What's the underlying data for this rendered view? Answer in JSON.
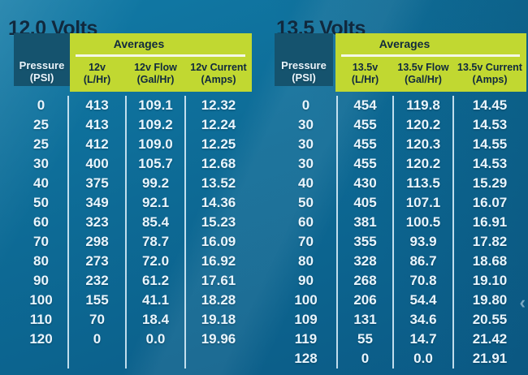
{
  "colors": {
    "background_top": "#117aa6",
    "background_mid": "#0d6a95",
    "background_bottom": "#0b5a85",
    "header_teal": "#15536e",
    "header_green": "#c1d831",
    "navy_text": "#10293e",
    "data_text": "#e9f5fd",
    "separator": "#daeef9",
    "averages_underline": "#f4f8e6"
  },
  "icons": {
    "chevron_left": "‹"
  },
  "tables": [
    {
      "title": "12.0 Volts",
      "pressure_header": {
        "line1": "Pressure",
        "line2": "(PSI)"
      },
      "averages_label": "Averages",
      "columns": [
        {
          "line1": "12v",
          "line2": "(L/Hr)"
        },
        {
          "line1": "12v Flow",
          "line2": "(Gal/Hr)"
        },
        {
          "line1": "12v Current",
          "line2": "(Amps)"
        }
      ],
      "rows": [
        [
          "0",
          "413",
          "109.1",
          "12.32"
        ],
        [
          "25",
          "413",
          "109.2",
          "12.24"
        ],
        [
          "25",
          "412",
          "109.0",
          "12.25"
        ],
        [
          "30",
          "400",
          "105.7",
          "12.68"
        ],
        [
          "40",
          "375",
          "99.2",
          "13.52"
        ],
        [
          "50",
          "349",
          "92.1",
          "14.36"
        ],
        [
          "60",
          "323",
          "85.4",
          "15.23"
        ],
        [
          "70",
          "298",
          "78.7",
          "16.09"
        ],
        [
          "80",
          "273",
          "72.0",
          "16.92"
        ],
        [
          "90",
          "232",
          "61.2",
          "17.61"
        ],
        [
          "100",
          "155",
          "41.1",
          "18.28"
        ],
        [
          "110",
          "70",
          "18.4",
          "19.18"
        ],
        [
          "120",
          "0",
          "0.0",
          "19.96"
        ]
      ]
    },
    {
      "title": "13.5 Volts",
      "pressure_header": {
        "line1": "Pressure",
        "line2": "(PSI)"
      },
      "averages_label": "Averages",
      "columns": [
        {
          "line1": "13.5v",
          "line2": "(L/Hr)"
        },
        {
          "line1": "13.5v Flow",
          "line2": "(Gal/Hr)"
        },
        {
          "line1": "13.5v Current",
          "line2": "(Amps)"
        }
      ],
      "rows": [
        [
          "0",
          "454",
          "119.8",
          "14.45"
        ],
        [
          "30",
          "455",
          "120.2",
          "14.53"
        ],
        [
          "30",
          "455",
          "120.3",
          "14.55"
        ],
        [
          "30",
          "455",
          "120.2",
          "14.53"
        ],
        [
          "40",
          "430",
          "113.5",
          "15.29"
        ],
        [
          "50",
          "405",
          "107.1",
          "16.07"
        ],
        [
          "60",
          "381",
          "100.5",
          "16.91"
        ],
        [
          "70",
          "355",
          "93.9",
          "17.82"
        ],
        [
          "80",
          "328",
          "86.7",
          "18.68"
        ],
        [
          "90",
          "268",
          "70.8",
          "19.10"
        ],
        [
          "100",
          "206",
          "54.4",
          "19.80"
        ],
        [
          "109",
          "131",
          "34.6",
          "20.55"
        ],
        [
          "119",
          "55",
          "14.7",
          "21.42"
        ],
        [
          "128",
          "0",
          "0.0",
          "21.91"
        ]
      ]
    }
  ],
  "chart_data": [
    {
      "type": "table",
      "title": "12.0 Volts",
      "columns": [
        "Pressure (PSI)",
        "12v (L/Hr)",
        "12v Flow (Gal/Hr)",
        "12v Current (Amps)"
      ],
      "header_group": "Averages",
      "rows": [
        [
          0,
          413,
          109.1,
          12.32
        ],
        [
          25,
          413,
          109.2,
          12.24
        ],
        [
          25,
          412,
          109.0,
          12.25
        ],
        [
          30,
          400,
          105.7,
          12.68
        ],
        [
          40,
          375,
          99.2,
          13.52
        ],
        [
          50,
          349,
          92.1,
          14.36
        ],
        [
          60,
          323,
          85.4,
          15.23
        ],
        [
          70,
          298,
          78.7,
          16.09
        ],
        [
          80,
          273,
          72.0,
          16.92
        ],
        [
          90,
          232,
          61.2,
          17.61
        ],
        [
          100,
          155,
          41.1,
          18.28
        ],
        [
          110,
          70,
          18.4,
          19.18
        ],
        [
          120,
          0,
          0.0,
          19.96
        ]
      ]
    },
    {
      "type": "table",
      "title": "13.5 Volts",
      "columns": [
        "Pressure (PSI)",
        "13.5v (L/Hr)",
        "13.5v Flow (Gal/Hr)",
        "13.5v Current (Amps)"
      ],
      "header_group": "Averages",
      "rows": [
        [
          0,
          454,
          119.8,
          14.45
        ],
        [
          30,
          455,
          120.2,
          14.53
        ],
        [
          30,
          455,
          120.3,
          14.55
        ],
        [
          30,
          455,
          120.2,
          14.53
        ],
        [
          40,
          430,
          113.5,
          15.29
        ],
        [
          50,
          405,
          107.1,
          16.07
        ],
        [
          60,
          381,
          100.5,
          16.91
        ],
        [
          70,
          355,
          93.9,
          17.82
        ],
        [
          80,
          328,
          86.7,
          18.68
        ],
        [
          90,
          268,
          70.8,
          19.1
        ],
        [
          100,
          206,
          54.4,
          19.8
        ],
        [
          109,
          131,
          34.6,
          20.55
        ],
        [
          119,
          55,
          14.7,
          21.42
        ],
        [
          128,
          0,
          0.0,
          21.91
        ]
      ]
    }
  ]
}
